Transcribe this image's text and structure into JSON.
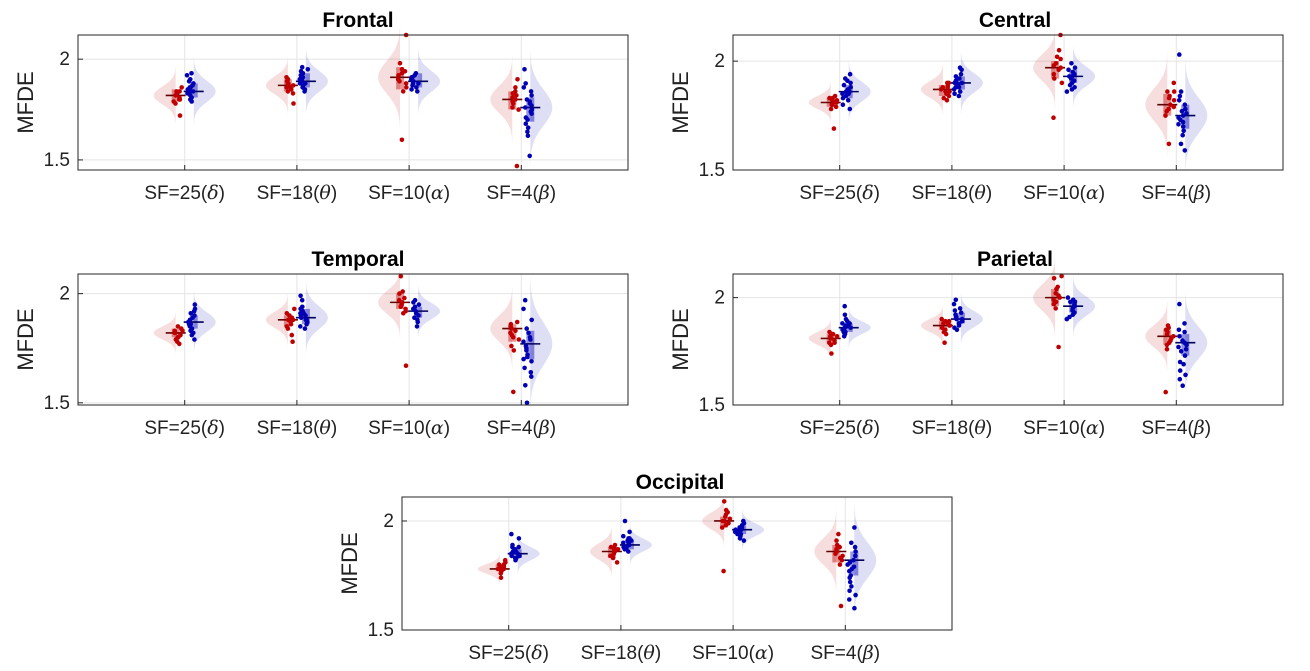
{
  "chart_data": [
    {
      "type": "raincloud",
      "title": "Frontal",
      "ylabel": "MFDE",
      "ylim": [
        1.45,
        2.12
      ],
      "yticks": [
        1.5,
        2
      ],
      "ytick_labels": [
        "1.5",
        "2"
      ],
      "grid": true,
      "categories": [
        {
          "prefix": "SF=25(",
          "greek": "δ",
          "suffix": ")"
        },
        {
          "prefix": "SF=18(",
          "greek": "θ",
          "suffix": ")"
        },
        {
          "prefix": "SF=10(",
          "greek": "α",
          "suffix": ")"
        },
        {
          "prefix": "SF=4(",
          "greek": "β",
          "suffix": ")"
        }
      ],
      "series": [
        {
          "color": "#c00000",
          "median": [
            1.82,
            1.87,
            1.91,
            1.8
          ],
          "q1": [
            1.79,
            1.84,
            1.85,
            1.75
          ],
          "q3": [
            1.85,
            1.9,
            1.96,
            1.84
          ],
          "points": [
            [
              1.8,
              1.84,
              1.82,
              1.78,
              1.83,
              1.81,
              1.86,
              1.79,
              1.84,
              1.82,
              1.72,
              1.8
            ],
            [
              1.86,
              1.89,
              1.84,
              1.88,
              1.91,
              1.83,
              1.87,
              1.85,
              1.9,
              1.86,
              1.78,
              1.88
            ],
            [
              1.94,
              1.98,
              1.86,
              1.92,
              1.89,
              2.12,
              1.95,
              1.84,
              1.9,
              1.6,
              1.93,
              1.88
            ],
            [
              1.82,
              1.8,
              1.75,
              1.86,
              1.84,
              1.78,
              1.81,
              1.9,
              1.76,
              1.83,
              1.79,
              1.47
            ]
          ]
        },
        {
          "color": "#0000b4",
          "median": [
            1.84,
            1.89,
            1.89,
            1.76
          ],
          "q1": [
            1.81,
            1.86,
            1.86,
            1.69
          ],
          "q3": [
            1.88,
            1.93,
            1.93,
            1.81
          ],
          "points": [
            [
              1.86,
              1.9,
              1.82,
              1.84,
              1.93,
              1.8,
              1.87,
              1.83,
              1.89,
              1.85,
              1.81,
              1.92,
              1.84,
              1.88,
              1.79,
              1.86
            ],
            [
              1.9,
              1.94,
              1.88,
              1.86,
              1.95,
              1.91,
              1.87,
              1.93,
              1.89,
              1.85,
              1.92,
              1.96,
              1.88,
              1.84,
              1.91,
              1.9
            ],
            [
              1.91,
              1.88,
              1.85,
              1.93,
              1.89,
              1.87,
              1.92,
              1.86,
              1.9,
              1.84,
              1.88,
              1.91
            ],
            [
              1.8,
              1.76,
              1.7,
              1.84,
              1.73,
              1.78,
              1.66,
              1.82,
              1.74,
              1.95,
              1.62,
              1.79,
              1.71,
              1.86,
              1.68,
              1.77,
              1.52,
              1.64,
              1.88,
              1.75
            ]
          ]
        }
      ]
    },
    {
      "type": "raincloud",
      "title": "Central",
      "ylabel": "MFDE",
      "ylim": [
        1.5,
        2.12
      ],
      "yticks": [
        1.5,
        2
      ],
      "ytick_labels": [
        "1.5",
        "2"
      ],
      "grid": true,
      "categories": [
        {
          "prefix": "SF=25(",
          "greek": "δ",
          "suffix": ")"
        },
        {
          "prefix": "SF=18(",
          "greek": "θ",
          "suffix": ")"
        },
        {
          "prefix": "SF=10(",
          "greek": "α",
          "suffix": ")"
        },
        {
          "prefix": "SF=4(",
          "greek": "β",
          "suffix": ")"
        }
      ],
      "series": [
        {
          "color": "#c00000",
          "median": [
            1.81,
            1.87,
            1.97,
            1.8
          ],
          "q1": [
            1.79,
            1.84,
            1.92,
            1.75
          ],
          "q3": [
            1.83,
            1.89,
            2.0,
            1.85
          ],
          "points": [
            [
              1.82,
              1.8,
              1.83,
              1.79,
              1.81,
              1.84,
              1.78,
              1.82,
              1.8,
              1.69,
              1.83,
              1.81
            ],
            [
              1.86,
              1.89,
              1.84,
              1.88,
              1.9,
              1.85,
              1.87,
              1.82,
              1.88,
              1.86,
              1.9,
              1.83
            ],
            [
              1.98,
              2.02,
              1.94,
              1.96,
              2.05,
              1.92,
              1.99,
              1.9,
              2.01,
              1.74,
              1.97,
              2.12
            ],
            [
              1.82,
              1.78,
              1.86,
              1.75,
              1.83,
              1.8,
              1.9,
              1.77,
              1.84,
              1.79,
              1.62,
              1.86
            ]
          ]
        },
        {
          "color": "#0000b4",
          "median": [
            1.86,
            1.9,
            1.93,
            1.75
          ],
          "q1": [
            1.83,
            1.87,
            1.9,
            1.69
          ],
          "q3": [
            1.89,
            1.93,
            1.96,
            1.8
          ],
          "points": [
            [
              1.86,
              1.9,
              1.83,
              1.88,
              1.94,
              1.82,
              1.87,
              1.85,
              1.91,
              1.84,
              1.78,
              1.89,
              1.86,
              1.8,
              1.92,
              1.85
            ],
            [
              1.9,
              1.94,
              1.88,
              1.86,
              1.96,
              1.91,
              1.87,
              1.92,
              1.89,
              1.85,
              1.93,
              1.97,
              1.88,
              1.84,
              1.91,
              1.9
            ],
            [
              1.93,
              1.9,
              1.96,
              1.88,
              1.95,
              1.91,
              1.97,
              1.89,
              1.94,
              1.86,
              1.92,
              1.99,
              1.87,
              1.93
            ],
            [
              1.78,
              1.74,
              1.7,
              1.82,
              1.72,
              1.76,
              1.66,
              1.8,
              1.73,
              1.86,
              1.62,
              1.77,
              1.68,
              1.84,
              1.59,
              2.03,
              1.75,
              1.71
            ]
          ]
        }
      ]
    },
    {
      "type": "raincloud",
      "title": "Temporal",
      "ylabel": "MFDE",
      "ylim": [
        1.49,
        2.09
      ],
      "yticks": [
        1.5,
        2
      ],
      "ytick_labels": [
        "1.5",
        "2"
      ],
      "grid": true,
      "categories": [
        {
          "prefix": "SF=25(",
          "greek": "δ",
          "suffix": ")"
        },
        {
          "prefix": "SF=18(",
          "greek": "θ",
          "suffix": ")"
        },
        {
          "prefix": "SF=10(",
          "greek": "α",
          "suffix": ")"
        },
        {
          "prefix": "SF=4(",
          "greek": "β",
          "suffix": ")"
        }
      ],
      "series": [
        {
          "color": "#c00000",
          "median": [
            1.82,
            1.88,
            1.96,
            1.84
          ],
          "q1": [
            1.8,
            1.85,
            1.93,
            1.78
          ],
          "q3": [
            1.84,
            1.9,
            2.0,
            1.86
          ],
          "points": [
            [
              1.82,
              1.8,
              1.84,
              1.79,
              1.83,
              1.81,
              1.77,
              1.85,
              1.8,
              1.82,
              1.78,
              1.83
            ],
            [
              1.88,
              1.91,
              1.85,
              1.89,
              1.93,
              1.84,
              1.87,
              1.78,
              1.9,
              1.86,
              1.81,
              1.88
            ],
            [
              1.97,
              2.0,
              1.93,
              1.95,
              2.08,
              1.91,
              1.98,
              1.94,
              2.01,
              1.67,
              1.96,
              1.92
            ],
            [
              1.84,
              1.8,
              1.86,
              1.76,
              1.83,
              1.79,
              1.82,
              1.74,
              1.85,
              1.55,
              1.81,
              1.87
            ]
          ]
        },
        {
          "color": "#0000b4",
          "median": [
            1.87,
            1.89,
            1.92,
            1.77
          ],
          "q1": [
            1.84,
            1.86,
            1.89,
            1.7
          ],
          "q3": [
            1.9,
            1.93,
            1.94,
            1.83
          ],
          "points": [
            [
              1.88,
              1.92,
              1.84,
              1.86,
              1.95,
              1.82,
              1.89,
              1.85,
              1.91,
              1.83,
              1.79,
              1.9,
              1.86,
              1.93,
              1.81,
              1.87
            ],
            [
              1.9,
              1.94,
              1.87,
              1.88,
              1.97,
              1.91,
              1.85,
              1.92,
              1.89,
              1.86,
              1.93,
              1.99,
              1.88,
              1.84,
              1.91,
              1.9
            ],
            [
              1.92,
              1.89,
              1.95,
              1.87,
              1.94,
              1.9,
              1.96,
              1.88,
              1.93,
              1.85,
              1.91,
              1.97
            ],
            [
              1.8,
              1.76,
              1.7,
              1.84,
              1.72,
              1.78,
              1.66,
              1.82,
              1.74,
              1.88,
              1.62,
              1.79,
              1.69,
              1.93,
              1.58,
              1.97,
              1.75,
              1.5,
              1.64,
              1.71
            ]
          ]
        }
      ]
    },
    {
      "type": "raincloud",
      "title": "Parietal",
      "ylabel": "MFDE",
      "ylim": [
        1.5,
        2.11
      ],
      "yticks": [
        1.5,
        2
      ],
      "ytick_labels": [
        "1.5",
        "2"
      ],
      "grid": true,
      "categories": [
        {
          "prefix": "SF=25(",
          "greek": "δ",
          "suffix": ")"
        },
        {
          "prefix": "SF=18(",
          "greek": "θ",
          "suffix": ")"
        },
        {
          "prefix": "SF=10(",
          "greek": "α",
          "suffix": ")"
        },
        {
          "prefix": "SF=4(",
          "greek": "β",
          "suffix": ")"
        }
      ],
      "series": [
        {
          "color": "#c00000",
          "median": [
            1.81,
            1.87,
            2.0,
            1.82
          ],
          "q1": [
            1.79,
            1.85,
            1.96,
            1.78
          ],
          "q3": [
            1.83,
            1.89,
            2.04,
            1.85
          ],
          "points": [
            [
              1.81,
              1.79,
              1.83,
              1.78,
              1.82,
              1.8,
              1.84,
              1.74,
              1.81,
              1.83,
              1.79,
              1.82
            ],
            [
              1.87,
              1.89,
              1.85,
              1.88,
              1.9,
              1.84,
              1.86,
              1.79,
              1.88,
              1.87,
              1.83,
              1.89
            ],
            [
              2.01,
              2.05,
              1.97,
              1.99,
              2.09,
              1.95,
              2.02,
              1.98,
              2.04,
              1.77,
              2.0,
              2.1
            ],
            [
              1.82,
              1.79,
              1.85,
              1.76,
              1.83,
              1.8,
              1.87,
              1.78,
              1.84,
              1.56,
              1.81,
              1.86
            ]
          ]
        },
        {
          "color": "#0000b4",
          "median": [
            1.86,
            1.9,
            1.96,
            1.79
          ],
          "q1": [
            1.84,
            1.88,
            1.93,
            1.73
          ],
          "q3": [
            1.88,
            1.93,
            1.99,
            1.83
          ],
          "points": [
            [
              1.86,
              1.89,
              1.84,
              1.87,
              1.92,
              1.83,
              1.88,
              1.85,
              1.9,
              1.84,
              1.96,
              1.86,
              1.82,
              1.88,
              1.85,
              1.87
            ],
            [
              1.9,
              1.94,
              1.88,
              1.86,
              1.97,
              1.91,
              1.89,
              1.93,
              1.87,
              1.92,
              1.99,
              1.88,
              1.9,
              1.85,
              1.91,
              1.95
            ],
            [
              1.96,
              1.93,
              1.99,
              1.91,
              1.98,
              1.94,
              1.97,
              1.92,
              1.95,
              1.9,
              2.0,
              1.96,
              1.93,
              1.98
            ],
            [
              1.8,
              1.76,
              1.7,
              1.84,
              1.73,
              1.78,
              1.66,
              1.82,
              1.75,
              1.88,
              1.62,
              1.79,
              1.69,
              1.97,
              1.59,
              1.77,
              1.64,
              1.85
            ]
          ]
        }
      ]
    },
    {
      "type": "raincloud",
      "title": "Occipital",
      "ylabel": "MFDE",
      "ylim": [
        1.5,
        2.11
      ],
      "yticks": [
        1.5,
        2
      ],
      "ytick_labels": [
        "1.5",
        "2"
      ],
      "grid": true,
      "categories": [
        {
          "prefix": "SF=25(",
          "greek": "δ",
          "suffix": ")"
        },
        {
          "prefix": "SF=18(",
          "greek": "θ",
          "suffix": ")"
        },
        {
          "prefix": "SF=10(",
          "greek": "α",
          "suffix": ")"
        },
        {
          "prefix": "SF=4(",
          "greek": "β",
          "suffix": ")"
        }
      ],
      "series": [
        {
          "color": "#c00000",
          "median": [
            1.78,
            1.86,
            2.0,
            1.86
          ],
          "q1": [
            1.77,
            1.83,
            1.97,
            1.81
          ],
          "q3": [
            1.8,
            1.88,
            2.02,
            1.89
          ],
          "points": [
            [
              1.79,
              1.78,
              1.8,
              1.77,
              1.81,
              1.78,
              1.76,
              1.79,
              1.74,
              1.8,
              1.78,
              1.82
            ],
            [
              1.86,
              1.88,
              1.84,
              1.87,
              1.89,
              1.83,
              1.85,
              1.81,
              1.87,
              1.86,
              1.84,
              1.88
            ],
            [
              2.01,
              2.04,
              1.98,
              2.0,
              2.09,
              1.97,
              2.02,
              1.99,
              2.05,
              1.77,
              2.0,
              2.03
            ],
            [
              1.86,
              1.83,
              1.89,
              1.8,
              1.87,
              1.84,
              1.91,
              1.82,
              1.88,
              1.61,
              1.85,
              1.94
            ]
          ]
        },
        {
          "color": "#0000b4",
          "median": [
            1.85,
            1.89,
            1.96,
            1.82
          ],
          "q1": [
            1.83,
            1.87,
            1.94,
            1.75
          ],
          "q3": [
            1.87,
            1.91,
            1.98,
            1.86
          ],
          "points": [
            [
              1.85,
              1.88,
              1.83,
              1.86,
              1.94,
              1.84,
              1.87,
              1.82,
              1.89,
              1.85,
              1.92,
              1.86,
              1.83,
              1.88,
              1.84,
              1.86
            ],
            [
              1.89,
              1.92,
              1.87,
              1.9,
              1.95,
              1.88,
              1.91,
              1.86,
              1.93,
              1.89,
              2.0,
              1.9,
              1.88,
              1.91,
              1.87,
              1.92
            ],
            [
              1.96,
              1.94,
              1.99,
              1.92,
              1.98,
              1.95,
              1.97,
              1.93,
              1.96,
              1.91,
              2.0,
              1.95,
              1.94,
              1.97
            ],
            [
              1.82,
              1.78,
              1.72,
              1.86,
              1.75,
              1.8,
              1.68,
              1.84,
              1.77,
              1.9,
              1.64,
              1.81,
              1.7,
              1.97,
              1.6,
              1.79,
              1.66,
              1.88,
              1.74
            ]
          ]
        }
      ]
    }
  ]
}
